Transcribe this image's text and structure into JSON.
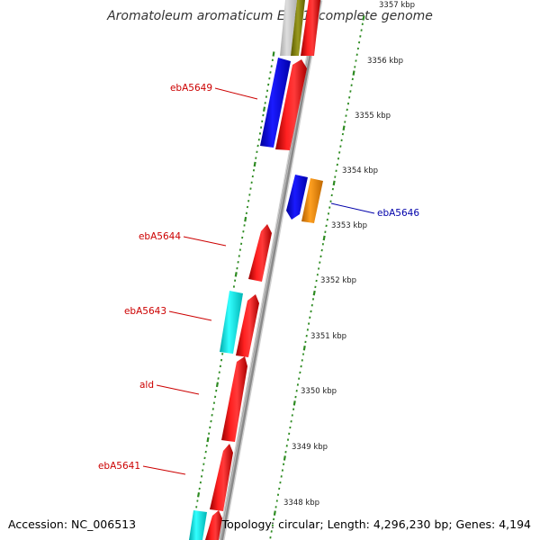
{
  "title": "Aromatoleum aromaticum EbN1, complete genome",
  "accession": "Accession: NC_006513",
  "summary": "Topology: circular; Length: 4,296,230 bp; Genes: 4,194",
  "colors": {
    "forward_gene": "#ff0000",
    "reverse_gene": "#0000ff",
    "cyan_gene": "#00ffff",
    "orange_gene": "#ff8c00",
    "olive_gene": "#808000",
    "backbone": "#8a8a8a",
    "tick": "#2e8b22",
    "label_red": "#cc0000",
    "label_blue": "#0000aa"
  },
  "scale_labels": [
    "3357 kbp",
    "3356 kbp",
    "3355 kbp",
    "3354 kbp",
    "3353 kbp",
    "3352 kbp",
    "3351 kbp",
    "3350 kbp",
    "3349 kbp",
    "3348 kbp"
  ],
  "gene_labels": [
    {
      "text": "ebA5649",
      "strand": "reverse"
    },
    {
      "text": "ebA5646",
      "strand": "forward"
    },
    {
      "text": "ebA5644",
      "strand": "reverse"
    },
    {
      "text": "ebA5643",
      "strand": "reverse"
    },
    {
      "text": "ald",
      "strand": "reverse"
    },
    {
      "text": "ebA5641",
      "strand": "reverse"
    }
  ]
}
